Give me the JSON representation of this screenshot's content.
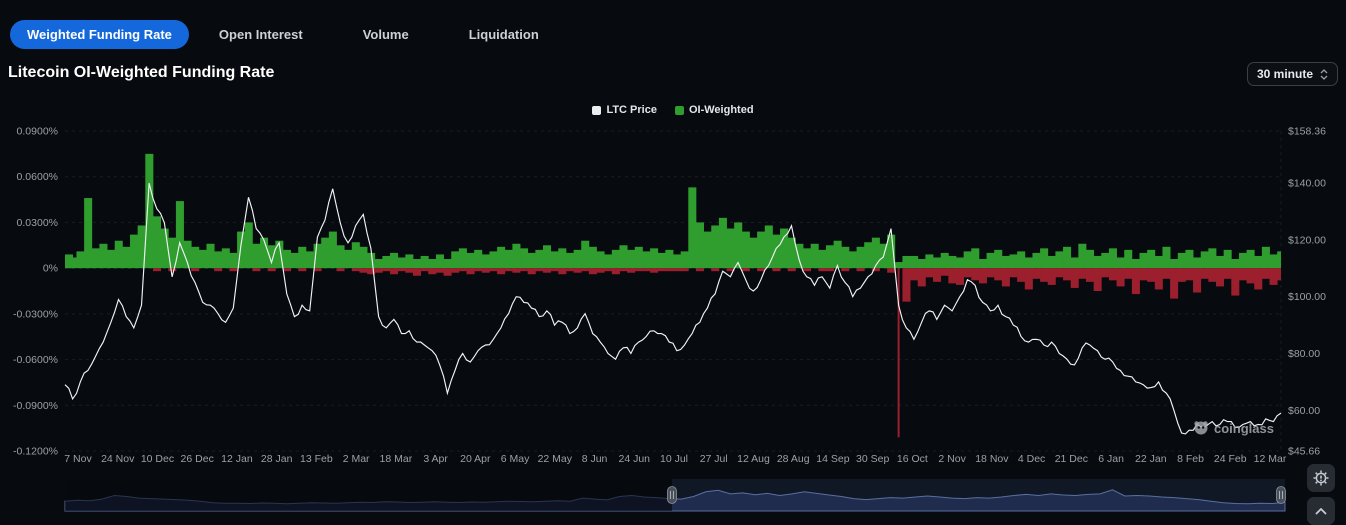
{
  "title": "Litecoin OI-Weighted Funding Rate",
  "tabs": {
    "items": [
      {
        "label": "Weighted Funding Rate",
        "active": true
      },
      {
        "label": "Open Interest",
        "active": false
      },
      {
        "label": "Volume",
        "active": false
      },
      {
        "label": "Liquidation",
        "active": false
      }
    ]
  },
  "interval_select": {
    "value": "30 minute"
  },
  "legend": [
    {
      "label": "LTC Price",
      "color": "#ebedef"
    },
    {
      "label": "OI-Weighted",
      "color": "#2f9e2f"
    }
  ],
  "watermark": "coinglass",
  "colors": {
    "accent_blue": "#1568dc",
    "positive_green": "#2f9e2f",
    "negative_red": "#9c1f2e",
    "price_line": "#f1f3f5",
    "nav_fill": "rgba(45,65,120,0.45)",
    "nav_line": "#5a6f9e"
  },
  "chart_data": {
    "type": "mixed",
    "grid": "dashed-horizontal",
    "legend_position": "top-center",
    "x_tick_labels": [
      "7 Nov",
      "24 Nov",
      "10 Dec",
      "26 Dec",
      "12 Jan",
      "28 Jan",
      "13 Feb",
      "2 Mar",
      "18 Mar",
      "3 Apr",
      "20 Apr",
      "6 May",
      "22 May",
      "8 Jun",
      "24 Jun",
      "10 Jul",
      "27 Jul",
      "12 Aug",
      "28 Aug",
      "14 Sep",
      "30 Sep",
      "16 Oct",
      "2 Nov",
      "18 Nov",
      "4 Dec",
      "21 Dec",
      "6 Jan",
      "22 Jan",
      "8 Feb",
      "24 Feb",
      "12 Mar"
    ],
    "left_axis": {
      "range": [
        -0.12,
        0.09
      ],
      "unit": "%",
      "ticks": [
        {
          "v": 0.09,
          "label": "0.0900%"
        },
        {
          "v": 0.06,
          "label": "0.0600%"
        },
        {
          "v": 0.03,
          "label": "0.0300%"
        },
        {
          "v": 0.0,
          "label": "0%"
        },
        {
          "v": -0.03,
          "label": "-0.0300%"
        },
        {
          "v": -0.06,
          "label": "-0.0600%"
        },
        {
          "v": -0.09,
          "label": "-0.0900%"
        },
        {
          "v": -0.12,
          "label": "-0.1200%"
        }
      ]
    },
    "right_axis": {
      "range": [
        45.66,
        158.36
      ],
      "unit": "$",
      "ticks": [
        {
          "v": 158.36,
          "label": "$158.36"
        },
        {
          "v": 140,
          "label": "$140.00"
        },
        {
          "v": 120,
          "label": "$120.00"
        },
        {
          "v": 100,
          "label": "$100.00"
        },
        {
          "v": 80,
          "label": "$80.00"
        },
        {
          "v": 60,
          "label": "$60.00"
        },
        {
          "v": 45.66,
          "label": "$45.66"
        }
      ]
    },
    "series": [
      {
        "name": "LTC Price",
        "type": "line",
        "yaxis": "right",
        "color": "#f1f3f5",
        "values": [
          69,
          64,
          70,
          74,
          79,
          84,
          91,
          99,
          93,
          89,
          97,
          140,
          131,
          126,
          107,
          119,
          112,
          105,
          98,
          97,
          94,
          91,
          96,
          118,
          135,
          124,
          120,
          112,
          119,
          101,
          93,
          97,
          95,
          121,
          127,
          138,
          126,
          119,
          125,
          129,
          117,
          93,
          89,
          92,
          87,
          88,
          84,
          83,
          81,
          76,
          66,
          74,
          80,
          77,
          81,
          83,
          85,
          89,
          94,
          100,
          98,
          96,
          93,
          95,
          90,
          91,
          87,
          89,
          94,
          87,
          84,
          80,
          78,
          82,
          80,
          84,
          86,
          88,
          87,
          84,
          81,
          83,
          87,
          91,
          96,
          101,
          109,
          107,
          112,
          106,
          102,
          106,
          111,
          117,
          121,
          125,
          113,
          107,
          104,
          107,
          103,
          111,
          105,
          100,
          103,
          107,
          111,
          114,
          124,
          97,
          89,
          85,
          91,
          95,
          92,
          97,
          95,
          100,
          106,
          104,
          98,
          95,
          97,
          93,
          90,
          86,
          84,
          85,
          83,
          84,
          80,
          78,
          76,
          82,
          83,
          81,
          78,
          77,
          74,
          72,
          70,
          69,
          68,
          70,
          66,
          60,
          52,
          53,
          55,
          54,
          56,
          55,
          56,
          54,
          55,
          56,
          55,
          57,
          56,
          59
        ]
      },
      {
        "name": "OI-Weighted",
        "type": "column",
        "yaxis": "left",
        "color_positive": "#2f9e2f",
        "color_negative": "#9c1f2e",
        "values_positive": [
          0.009,
          0.007,
          0.011,
          0.046,
          0.013,
          0.016,
          0.012,
          0.018,
          0.014,
          0.022,
          0.028,
          0.075,
          0.034,
          0.026,
          0.02,
          0.044,
          0.018,
          0.014,
          0.012,
          0.016,
          0.011,
          0.013,
          0.01,
          0.024,
          0.03,
          0.016,
          0.02,
          0.015,
          0.018,
          0.012,
          0.01,
          0.014,
          0.011,
          0.016,
          0.02,
          0.024,
          0.015,
          0.012,
          0.017,
          0.014,
          0.01,
          0.006,
          0.008,
          0.01,
          0.007,
          0.009,
          0.006,
          0.008,
          0.006,
          0.009,
          0.006,
          0.011,
          0.013,
          0.01,
          0.012,
          0.009,
          0.011,
          0.014,
          0.012,
          0.016,
          0.013,
          0.01,
          0.012,
          0.015,
          0.011,
          0.013,
          0.01,
          0.012,
          0.018,
          0.014,
          0.011,
          0.009,
          0.012,
          0.015,
          0.012,
          0.014,
          0.011,
          0.013,
          0.01,
          0.012,
          0.009,
          0.011,
          0.053,
          0.03,
          0.024,
          0.028,
          0.033,
          0.026,
          0.03,
          0.024,
          0.02,
          0.024,
          0.028,
          0.022,
          0.026,
          0.02,
          0.016,
          0.013,
          0.016,
          0.012,
          0.015,
          0.018,
          0.014,
          0.011,
          0.014,
          0.017,
          0.02,
          0.016,
          0.022,
          0.004,
          0.008,
          0.008,
          0.006,
          0.009,
          0.007,
          0.01,
          0.008,
          0.007,
          0.011,
          0.013,
          0.006,
          0.01,
          0.012,
          0.008,
          0.009,
          0.011,
          0.007,
          0.01,
          0.013,
          0.008,
          0.011,
          0.014,
          0.007,
          0.016,
          0.012,
          0.008,
          0.01,
          0.013,
          0.007,
          0.012,
          0.006,
          0.01,
          0.012,
          0.008,
          0.014,
          0.006,
          0.01,
          0.012,
          0.007,
          0.011,
          0.013,
          0.008,
          0.012,
          0.006,
          0.01,
          0.012,
          0.008,
          0.014,
          0.009,
          0.011
        ],
        "values_negative": [
          0,
          0,
          0,
          0,
          0,
          0,
          0,
          0,
          0,
          0,
          0,
          0,
          -0.002,
          0,
          -0.002,
          0,
          0,
          -0.002,
          0,
          0,
          -0.002,
          0,
          -0.002,
          0,
          0,
          -0.002,
          0,
          -0.002,
          0,
          -0.002,
          0,
          -0.002,
          0,
          -0.002,
          0,
          0,
          -0.002,
          0,
          -0.002,
          -0.003,
          -0.004,
          -0.003,
          -0.002,
          -0.004,
          -0.002,
          -0.003,
          -0.005,
          -0.002,
          -0.004,
          -0.003,
          -0.005,
          -0.003,
          -0.002,
          -0.004,
          -0.002,
          -0.003,
          -0.002,
          -0.004,
          -0.002,
          -0.003,
          -0.002,
          -0.004,
          -0.002,
          -0.003,
          -0.002,
          -0.004,
          -0.002,
          -0.003,
          -0.002,
          -0.004,
          -0.003,
          -0.002,
          -0.004,
          -0.002,
          -0.003,
          -0.002,
          -0.002,
          -0.003,
          -0.002,
          -0.002,
          -0.002,
          -0.002,
          0,
          -0.002,
          0,
          -0.002,
          0,
          -0.002,
          0,
          -0.002,
          0,
          -0.002,
          0,
          -0.002,
          0,
          -0.002,
          0,
          -0.002,
          0,
          -0.002,
          -0.002,
          0,
          -0.002,
          0,
          -0.002,
          0,
          -0.002,
          0,
          -0.003,
          -0.111,
          -0.022,
          -0.008,
          -0.012,
          -0.006,
          -0.009,
          -0.005,
          -0.01,
          -0.011,
          -0.006,
          -0.008,
          -0.01,
          -0.006,
          -0.008,
          -0.012,
          -0.006,
          -0.009,
          -0.014,
          -0.007,
          -0.009,
          -0.011,
          -0.006,
          -0.008,
          -0.013,
          -0.007,
          -0.009,
          -0.015,
          -0.006,
          -0.008,
          -0.012,
          -0.007,
          -0.017,
          -0.008,
          -0.009,
          -0.014,
          -0.007,
          -0.02,
          -0.009,
          -0.008,
          -0.016,
          -0.007,
          -0.009,
          -0.012,
          -0.007,
          -0.018,
          -0.008,
          -0.01,
          -0.014,
          -0.007,
          -0.011,
          -0.008
        ]
      }
    ],
    "navigator": {
      "selection_start_fraction": 0.4975,
      "selection_end_fraction": 1.0,
      "values": [
        0.3,
        0.34,
        0.32,
        0.38,
        0.52,
        0.48,
        0.42,
        0.4,
        0.38,
        0.36,
        0.34,
        0.3,
        0.24,
        0.22,
        0.22,
        0.21,
        0.23,
        0.22,
        0.2,
        0.22,
        0.24,
        0.23,
        0.22,
        0.24,
        0.26,
        0.25,
        0.28,
        0.27,
        0.25,
        0.26,
        0.28,
        0.26,
        0.25,
        0.27,
        0.26,
        0.28,
        0.3,
        0.29,
        0.28,
        0.3,
        0.32,
        0.3,
        0.42,
        0.38,
        0.35,
        0.48,
        0.52,
        0.46,
        0.44,
        0.4,
        0.38,
        0.48,
        0.66,
        0.72,
        0.58,
        0.62,
        0.55,
        0.6,
        0.52,
        0.58,
        0.66,
        0.6,
        0.54,
        0.48,
        0.4,
        0.36,
        0.4,
        0.44,
        0.42,
        0.46,
        0.5,
        0.46,
        0.42,
        0.4,
        0.44,
        0.42,
        0.46,
        0.52,
        0.56,
        0.52,
        0.58,
        0.54,
        0.52,
        0.56,
        0.58,
        0.74,
        0.5,
        0.52,
        0.5,
        0.46,
        0.44,
        0.4,
        0.36,
        0.3,
        0.24,
        0.21,
        0.2,
        0.22,
        0.21,
        0.26
      ]
    }
  }
}
